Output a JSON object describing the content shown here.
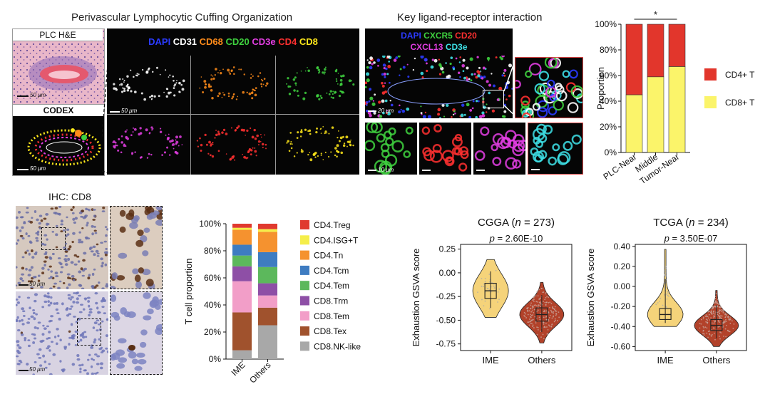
{
  "titles": {
    "cuffing": "Perivascular Lymphocytic Cuffing Organization",
    "ligand": "Key ligand-receptor interaction",
    "ihc": "IHC: CD8"
  },
  "he_panel": {
    "label": "PLC H&E",
    "scale": "50 μm"
  },
  "codex_panel": {
    "label": "CODEX",
    "scale": "50 μm"
  },
  "codex_markers": [
    {
      "text": "DAPI",
      "color": "#2b3bff"
    },
    {
      "text": "CD31",
      "color": "#ffffff"
    },
    {
      "text": "CD68",
      "color": "#ff8c1a"
    },
    {
      "text": "CD20",
      "color": "#3fd23f"
    },
    {
      "text": "CD3e",
      "color": "#e33ee3"
    },
    {
      "text": "CD4",
      "color": "#ff3030"
    },
    {
      "text": "CD8",
      "color": "#ffe81a"
    }
  ],
  "codex_grid_scale": "50 μm",
  "ligand_markers_line1": [
    {
      "text": "DAPI",
      "color": "#2b3bff"
    },
    {
      "text": "CXCR5",
      "color": "#3fd23f"
    },
    {
      "text": "CD20",
      "color": "#ff3030"
    }
  ],
  "ligand_markers_line2": [
    {
      "text": "CXCL13",
      "color": "#e33ee3"
    },
    {
      "text": "CD3e",
      "color": "#3ee0e6"
    }
  ],
  "ligand_scales": {
    "main": "20 μm",
    "small": "10 μm"
  },
  "ihc_scale": "50 μm",
  "colors": {
    "cd4": "#e2362c",
    "cd8": "#fbf46a",
    "violin_ime": "#f5d37a",
    "violin_others": "#b2422a"
  },
  "chart_data": [
    {
      "type": "bar",
      "subtype": "stacked-100",
      "categories": [
        "PLC-Near",
        "Middle",
        "Tumor-Near"
      ],
      "series": [
        {
          "name": "CD8+ T",
          "values": [
            45,
            59,
            67
          ]
        },
        {
          "name": "CD4+ T",
          "values": [
            55,
            41,
            33
          ]
        }
      ],
      "ylabel": "Proportion",
      "yticks": [
        "0%",
        "20%",
        "40%",
        "60%",
        "80%",
        "100%"
      ],
      "ylim": [
        0,
        100
      ],
      "significance": "*",
      "legend": "right"
    },
    {
      "type": "bar",
      "subtype": "stacked-100",
      "categories": [
        "IME",
        "Others"
      ],
      "series": [
        {
          "name": "CD8.NK-like",
          "color": "#a8a8a8",
          "values": [
            6.5,
            25
          ]
        },
        {
          "name": "CD8.Tex",
          "color": "#a0522d",
          "values": [
            28,
            13
          ]
        },
        {
          "name": "CD8.Tem",
          "color": "#f29ec8",
          "values": [
            23,
            9
          ]
        },
        {
          "name": "CD8.Trm",
          "color": "#8e4fa6",
          "values": [
            11,
            9
          ]
        },
        {
          "name": "CD4.Tem",
          "color": "#5cb85c",
          "values": [
            8,
            12
          ]
        },
        {
          "name": "CD4.Tcm",
          "color": "#3e7cc1",
          "values": [
            8,
            11
          ]
        },
        {
          "name": "CD4.Tn",
          "color": "#f5922f",
          "values": [
            11,
            15
          ]
        },
        {
          "name": "CD4.ISG+T",
          "color": "#f5ee4a",
          "values": [
            1.5,
            2
          ]
        },
        {
          "name": "CD4.Treg",
          "color": "#e03a2f",
          "values": [
            3,
            4
          ]
        }
      ],
      "legend_order": [
        "CD4.Treg",
        "CD4.ISG+T",
        "CD4.Tn",
        "CD4.Tcm",
        "CD4.Tem",
        "CD8.Trm",
        "CD8.Tem",
        "CD8.Tex",
        "CD8.NK-like"
      ],
      "ylabel": "T cell proportion",
      "yticks": [
        "0%",
        "20%",
        "40%",
        "60%",
        "80%",
        "100%"
      ],
      "ylim": [
        0,
        100
      ],
      "legend": "right"
    },
    {
      "type": "violin",
      "title": "CGGA (n = 273)",
      "title_prefix": "CGGA (",
      "title_n": "n",
      "title_suffix": " = 273)",
      "pvalue": "p = 2.60E-10",
      "p_label": "p",
      "p_text": " = 2.60E-10",
      "categories": [
        "IME",
        "Others"
      ],
      "ylabel": "Exhaustion GSVA score",
      "ylim": [
        -0.82,
        0.3
      ],
      "yticks": [
        0.25,
        0.0,
        -0.25,
        -0.5,
        -0.75
      ],
      "ytick_labels": [
        "0.25",
        "0.00",
        "-0.25",
        "-0.50",
        "-0.75"
      ],
      "groups": [
        {
          "name": "IME",
          "min": -0.47,
          "q1": -0.27,
          "median": -0.19,
          "q3": -0.11,
          "max": 0.14
        },
        {
          "name": "Others",
          "min": -0.74,
          "q1": -0.51,
          "median": -0.44,
          "q3": -0.37,
          "max": -0.1
        }
      ]
    },
    {
      "type": "violin",
      "title": "TCGA (n = 234)",
      "title_prefix": "TCGA (",
      "title_n": "n",
      "title_suffix": " = 234)",
      "pvalue": "p = 3.50E-07",
      "p_label": "p",
      "p_text": " = 3.50E-07",
      "categories": [
        "IME",
        "Others"
      ],
      "ylabel": "Exhaustion GSVA score",
      "ylim": [
        -0.64,
        0.42
      ],
      "yticks": [
        0.4,
        0.2,
        0.0,
        -0.2,
        -0.4,
        -0.6
      ],
      "ytick_labels": [
        "0.40",
        "0.20",
        "0.00",
        "-0.20",
        "-0.40",
        "-0.60"
      ],
      "groups": [
        {
          "name": "IME",
          "min": -0.4,
          "q1": -0.33,
          "median": -0.28,
          "q3": -0.22,
          "max": 0.37
        },
        {
          "name": "Others",
          "min": -0.6,
          "q1": -0.44,
          "median": -0.39,
          "q3": -0.33,
          "max": -0.04
        }
      ]
    }
  ]
}
